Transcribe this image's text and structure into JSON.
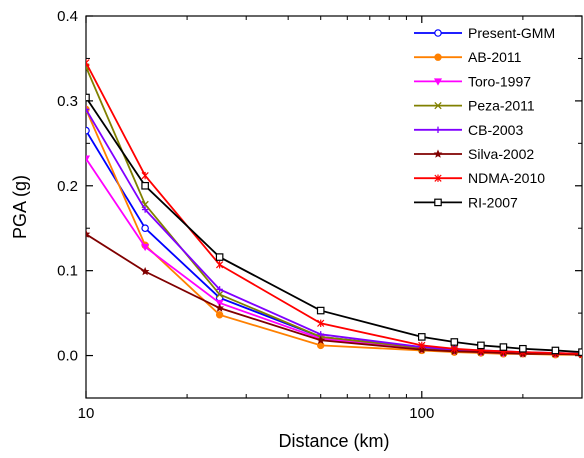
{
  "chart_data": {
    "type": "line",
    "xlabel": "Distance (km)",
    "ylabel": "PGA (g)",
    "xscale": "log",
    "xlim": [
      10,
      300
    ],
    "ylim": [
      -0.05,
      0.4
    ],
    "x_ticks": [
      {
        "value": 10,
        "label": "10"
      },
      {
        "value": 100,
        "label": "100"
      }
    ],
    "y_ticks": [
      {
        "value": 0.0,
        "label": "0.0"
      },
      {
        "value": 0.1,
        "label": "0.1"
      },
      {
        "value": 0.2,
        "label": "0.2"
      },
      {
        "value": 0.3,
        "label": "0.3"
      },
      {
        "value": 0.4,
        "label": "0.4"
      }
    ],
    "legend_position": "top-right",
    "grid": false,
    "x": [
      10,
      15,
      25,
      50,
      100,
      125,
      150,
      175,
      200,
      250,
      300
    ],
    "series": [
      {
        "name": "Present-GMM",
        "color": "#0000ff",
        "marker": "circle-open",
        "values": [
          0.265,
          0.15,
          0.068,
          0.022,
          0.009,
          0.007,
          0.005,
          0.004,
          0.003,
          0.002,
          0.002
        ]
      },
      {
        "name": "AB-2011",
        "color": "#ff8000",
        "marker": "circle-filled",
        "values": [
          0.29,
          0.13,
          0.048,
          0.012,
          0.006,
          0.004,
          0.003,
          0.002,
          0.002,
          0.001,
          0.001
        ]
      },
      {
        "name": "Toro-1997",
        "color": "#ff00ff",
        "marker": "triangle-down",
        "values": [
          0.232,
          0.128,
          0.062,
          0.02,
          0.008,
          0.006,
          0.004,
          0.003,
          0.003,
          0.002,
          0.002
        ]
      },
      {
        "name": "Peza-2011",
        "color": "#808000",
        "marker": "x",
        "values": [
          0.34,
          0.178,
          0.072,
          0.022,
          0.009,
          0.007,
          0.005,
          0.004,
          0.003,
          0.002,
          0.002
        ]
      },
      {
        "name": "CB-2003",
        "color": "#8000ff",
        "marker": "plus",
        "values": [
          0.29,
          0.172,
          0.078,
          0.025,
          0.01,
          0.007,
          0.006,
          0.005,
          0.004,
          0.003,
          0.002
        ]
      },
      {
        "name": "Silva-2002",
        "color": "#800000",
        "marker": "star",
        "values": [
          0.143,
          0.099,
          0.056,
          0.018,
          0.007,
          0.005,
          0.004,
          0.003,
          0.002,
          0.002,
          0.001
        ]
      },
      {
        "name": "NDMA-2010",
        "color": "#ff0000",
        "marker": "asterisk",
        "values": [
          0.345,
          0.212,
          0.107,
          0.038,
          0.012,
          0.008,
          0.006,
          0.005,
          0.004,
          0.003,
          0.002
        ]
      },
      {
        "name": "RI-2007",
        "color": "#000000",
        "marker": "square-open",
        "values": [
          0.304,
          0.2,
          0.116,
          0.053,
          0.022,
          0.016,
          0.012,
          0.01,
          0.008,
          0.006,
          0.004
        ]
      }
    ]
  }
}
